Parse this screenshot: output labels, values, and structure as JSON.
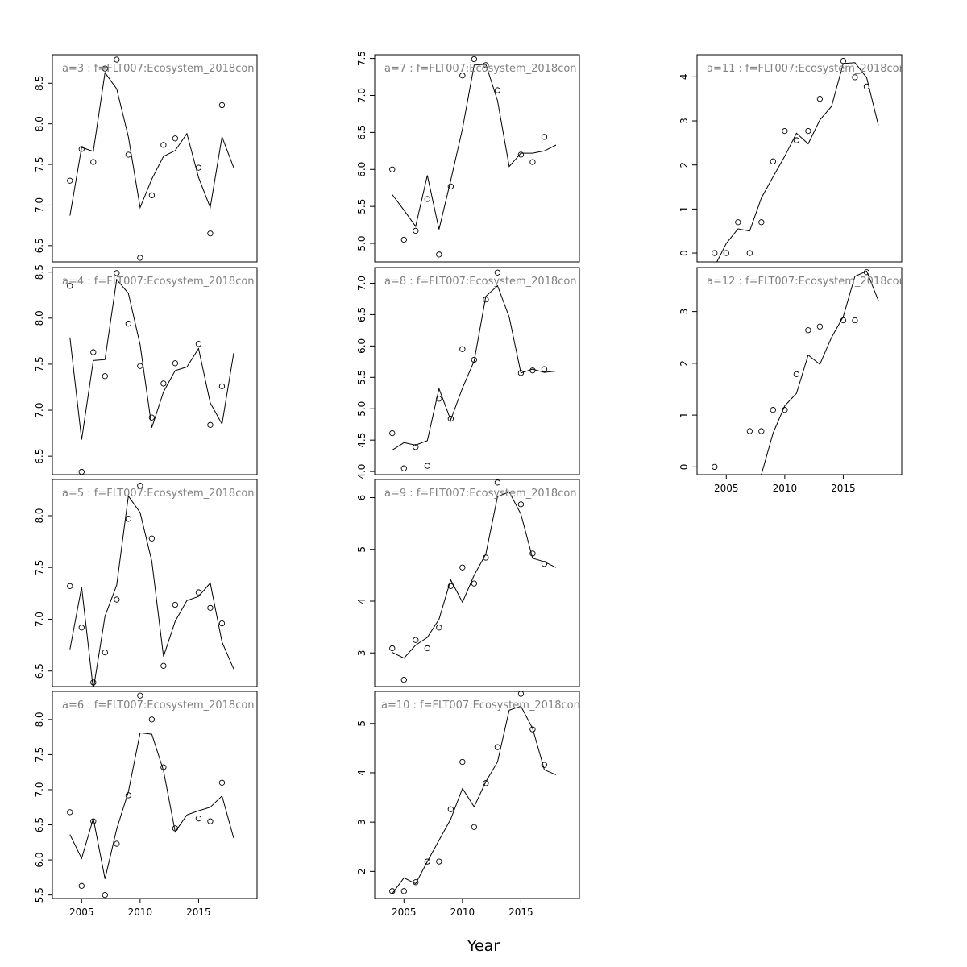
{
  "xlabel": "Year",
  "chart_data": [
    {
      "type": "scatter",
      "title": "a=3 : f=FLT007:Ecosystem_2018con",
      "ylim": [
        6.3,
        8.85
      ],
      "yticks": [
        6.5,
        7.0,
        7.5,
        8.0,
        8.5
      ],
      "xlim": [
        2002.5,
        2020
      ],
      "xticks": [
        2005,
        2010,
        2015
      ],
      "points": {
        "x": [
          2004,
          2005,
          2006,
          2007,
          2008,
          2009,
          2010,
          2011,
          2012,
          2013,
          2015,
          2016,
          2017
        ],
        "y": [
          7.3,
          7.69,
          7.53,
          8.68,
          8.79,
          7.62,
          6.35,
          7.12,
          7.74,
          7.82,
          7.46,
          6.65,
          8.23
        ]
      },
      "fit": {
        "x": [
          2004,
          2005,
          2006,
          2007,
          2008,
          2009,
          2010,
          2011,
          2012,
          2013,
          2014,
          2015,
          2016,
          2017,
          2018
        ],
        "y": [
          6.87,
          7.71,
          7.66,
          8.63,
          8.43,
          7.84,
          6.97,
          7.32,
          7.6,
          7.67,
          7.88,
          7.34,
          6.97,
          7.84,
          7.46
        ]
      }
    },
    {
      "type": "scatter",
      "title": "a=4 : f=FLT007:Ecosystem_2018con",
      "ylim": [
        6.3,
        8.55
      ],
      "yticks": [
        6.5,
        7.0,
        7.5,
        8.0,
        8.5
      ],
      "xlim": [
        2002.5,
        2020
      ],
      "xticks": [
        2005,
        2010,
        2015
      ],
      "points": {
        "x": [
          2004,
          2005,
          2006,
          2007,
          2008,
          2009,
          2010,
          2011,
          2012,
          2013,
          2015,
          2016,
          2017
        ],
        "y": [
          8.35,
          6.33,
          7.63,
          7.37,
          8.49,
          7.94,
          7.48,
          6.92,
          7.29,
          7.51,
          7.72,
          6.84,
          7.26
        ]
      },
      "fit": {
        "x": [
          2004,
          2005,
          2006,
          2007,
          2008,
          2009,
          2010,
          2011,
          2012,
          2013,
          2014,
          2015,
          2016,
          2017,
          2018
        ],
        "y": [
          7.79,
          6.68,
          7.54,
          7.55,
          8.42,
          8.27,
          7.71,
          6.81,
          7.2,
          7.43,
          7.47,
          7.67,
          7.08,
          6.85,
          7.62
        ]
      }
    },
    {
      "type": "scatter",
      "title": "a=5 : f=FLT007:Ecosystem_2018con",
      "ylim": [
        6.35,
        8.35
      ],
      "yticks": [
        6.5,
        7.0,
        7.5,
        8.0
      ],
      "xlim": [
        2002.5,
        2020
      ],
      "xticks": [
        2005,
        2010,
        2015
      ],
      "points": {
        "x": [
          2004,
          2005,
          2006,
          2007,
          2008,
          2009,
          2010,
          2011,
          2012,
          2013,
          2015,
          2016,
          2017
        ],
        "y": [
          7.32,
          6.92,
          6.39,
          6.68,
          7.19,
          7.97,
          8.29,
          7.78,
          6.55,
          7.14,
          7.26,
          7.11,
          6.96
        ]
      },
      "fit": {
        "x": [
          2004,
          2005,
          2006,
          2007,
          2008,
          2009,
          2010,
          2011,
          2012,
          2013,
          2014,
          2015,
          2016,
          2017,
          2018
        ],
        "y": [
          6.71,
          7.31,
          6.32,
          7.03,
          7.33,
          8.19,
          8.03,
          7.56,
          6.64,
          6.98,
          7.18,
          7.22,
          7.35,
          6.78,
          6.52
        ]
      }
    },
    {
      "type": "scatter",
      "title": "a=6 : f=FLT007:Ecosystem_2018con",
      "ylim": [
        5.45,
        8.4
      ],
      "yticks": [
        5.5,
        6.0,
        6.5,
        7.0,
        7.5,
        8.0
      ],
      "xlim": [
        2002.5,
        2020
      ],
      "xticks": [
        2005,
        2010,
        2015
      ],
      "points": {
        "x": [
          2004,
          2005,
          2006,
          2007,
          2008,
          2009,
          2010,
          2011,
          2012,
          2013,
          2015,
          2016,
          2017
        ],
        "y": [
          6.68,
          5.63,
          6.55,
          5.5,
          6.23,
          6.92,
          8.34,
          8.0,
          7.32,
          6.45,
          6.59,
          6.55,
          7.1
        ]
      },
      "fit": {
        "x": [
          2004,
          2005,
          2006,
          2007,
          2008,
          2009,
          2010,
          2011,
          2012,
          2013,
          2014,
          2015,
          2016,
          2017,
          2018
        ],
        "y": [
          6.36,
          6.02,
          6.59,
          5.73,
          6.44,
          6.97,
          7.81,
          7.79,
          7.27,
          6.4,
          6.64,
          6.7,
          6.75,
          6.91,
          6.31
        ]
      }
    },
    {
      "type": "scatter",
      "title": "a=7 : f=FLT007:Ecosystem_2018con",
      "ylim": [
        4.75,
        7.55
      ],
      "yticks": [
        5.0,
        5.5,
        6.0,
        6.5,
        7.0,
        7.5
      ],
      "xlim": [
        2002.5,
        2020
      ],
      "xticks": [
        2005,
        2010,
        2015
      ],
      "points": {
        "x": [
          2004,
          2005,
          2006,
          2007,
          2008,
          2009,
          2010,
          2011,
          2012,
          2013,
          2015,
          2016,
          2017
        ],
        "y": [
          6.0,
          5.05,
          5.17,
          5.6,
          4.85,
          5.77,
          7.27,
          7.49,
          7.41,
          7.07,
          6.2,
          6.1,
          6.44
        ]
      },
      "fit": {
        "x": [
          2004,
          2005,
          2006,
          2007,
          2008,
          2009,
          2010,
          2011,
          2012,
          2013,
          2014,
          2015,
          2016,
          2017,
          2018
        ],
        "y": [
          5.66,
          5.45,
          5.23,
          5.92,
          5.19,
          5.85,
          6.55,
          7.41,
          7.42,
          6.93,
          6.04,
          6.22,
          6.22,
          6.25,
          6.33
        ]
      }
    },
    {
      "type": "scatter",
      "title": "a=8 : f=FLT007:Ecosystem_2018con",
      "ylim": [
        3.95,
        7.25
      ],
      "yticks": [
        4.0,
        4.5,
        5.0,
        5.5,
        6.0,
        6.5,
        7.0
      ],
      "xlim": [
        2002.5,
        2020
      ],
      "xticks": [
        2005,
        2010,
        2015
      ],
      "points": {
        "x": [
          2004,
          2005,
          2006,
          2007,
          2008,
          2009,
          2010,
          2011,
          2012,
          2013,
          2015,
          2016,
          2017
        ],
        "y": [
          4.61,
          4.05,
          4.39,
          4.09,
          5.16,
          4.84,
          5.95,
          5.78,
          6.74,
          7.17,
          5.57,
          5.61,
          5.63
        ]
      },
      "fit": {
        "x": [
          2004,
          2005,
          2006,
          2007,
          2008,
          2009,
          2010,
          2011,
          2012,
          2013,
          2014,
          2015,
          2016,
          2017,
          2018
        ],
        "y": [
          4.34,
          4.46,
          4.42,
          4.49,
          5.32,
          4.82,
          5.33,
          5.76,
          6.79,
          6.96,
          6.46,
          5.57,
          5.63,
          5.58,
          5.6
        ]
      }
    },
    {
      "type": "scatter",
      "title": "a=9 : f=FLT007:Ecosystem_2018con",
      "ylim": [
        2.35,
        6.35
      ],
      "yticks": [
        3,
        4,
        5,
        6
      ],
      "xlim": [
        2002.5,
        2020
      ],
      "xticks": [
        2005,
        2010,
        2015
      ],
      "points": {
        "x": [
          2004,
          2005,
          2006,
          2007,
          2008,
          2009,
          2010,
          2011,
          2012,
          2013,
          2015,
          2016,
          2017
        ],
        "y": [
          3.09,
          2.48,
          3.25,
          3.09,
          3.49,
          4.29,
          4.65,
          4.34,
          4.84,
          6.29,
          5.87,
          4.92,
          4.72
        ]
      },
      "fit": {
        "x": [
          2004,
          2005,
          2006,
          2007,
          2008,
          2009,
          2010,
          2011,
          2012,
          2013,
          2014,
          2015,
          2016,
          2017,
          2018
        ],
        "y": [
          3.01,
          2.9,
          3.15,
          3.3,
          3.65,
          4.41,
          3.98,
          4.5,
          4.91,
          6.02,
          6.11,
          5.68,
          4.83,
          4.76,
          4.65
        ]
      }
    },
    {
      "type": "scatter",
      "title": "a=10 : f=FLT007:Ecosystem_2018con",
      "ylim": [
        1.45,
        5.65
      ],
      "yticks": [
        2,
        3,
        4,
        5
      ],
      "xlim": [
        2002.5,
        2020
      ],
      "xticks": [
        2005,
        2010,
        2015
      ],
      "points": {
        "x": [
          2004,
          2005,
          2006,
          2007,
          2008,
          2009,
          2010,
          2011,
          2012,
          2013,
          2015,
          2016,
          2017
        ],
        "y": [
          1.6,
          1.6,
          1.78,
          2.2,
          2.2,
          3.26,
          4.22,
          2.9,
          3.79,
          4.52,
          5.6,
          4.88,
          4.16
        ]
      },
      "fit": {
        "x": [
          2004,
          2005,
          2006,
          2007,
          2008,
          2009,
          2010,
          2011,
          2012,
          2013,
          2014,
          2015,
          2016,
          2017,
          2018
        ],
        "y": [
          1.55,
          1.87,
          1.75,
          2.2,
          2.63,
          3.06,
          3.68,
          3.31,
          3.82,
          4.22,
          5.27,
          5.35,
          4.9,
          4.06,
          3.96
        ]
      }
    },
    {
      "type": "scatter",
      "title": "a=11 : f=FLT007:Ecosystem_2018con",
      "ylim": [
        -0.2,
        4.5
      ],
      "yticks": [
        0,
        1,
        2,
        3,
        4
      ],
      "xlim": [
        2002.5,
        2020
      ],
      "xticks": [
        2005,
        2010,
        2015
      ],
      "points": {
        "x": [
          2004,
          2005,
          2006,
          2007,
          2008,
          2009,
          2010,
          2011,
          2012,
          2013,
          2015,
          2016,
          2017
        ],
        "y": [
          0.0,
          0.0,
          0.7,
          0.0,
          0.7,
          2.08,
          2.77,
          2.56,
          2.77,
          3.5,
          4.36,
          3.99,
          3.78
        ]
      },
      "fit": {
        "x": [
          2004,
          2005,
          2006,
          2007,
          2008,
          2009,
          2010,
          2011,
          2012,
          2013,
          2014,
          2015,
          2016,
          2017,
          2018
        ],
        "y": [
          -0.3,
          0.22,
          0.55,
          0.5,
          1.25,
          1.73,
          2.2,
          2.72,
          2.48,
          3.02,
          3.33,
          4.3,
          4.32,
          3.98,
          2.9
        ]
      }
    },
    {
      "type": "scatter",
      "title": "a=12 : f=FLT007:Ecosystem_2018con",
      "ylim": [
        -0.15,
        3.85
      ],
      "yticks": [
        0,
        1,
        2,
        3
      ],
      "xlim": [
        2002.5,
        2020
      ],
      "xticks": [
        2005,
        2010,
        2015
      ],
      "points": {
        "x": [
          2004,
          2007,
          2008,
          2009,
          2010,
          2011,
          2012,
          2013,
          2015,
          2016,
          2017
        ],
        "y": [
          0.0,
          0.69,
          0.69,
          1.1,
          1.1,
          1.79,
          2.64,
          2.71,
          2.83,
          2.83,
          3.76
        ]
      },
      "fit": {
        "x": [
          2008,
          2009,
          2010,
          2011,
          2012,
          2013,
          2014,
          2015,
          2016,
          2017,
          2018
        ],
        "y": [
          -0.15,
          0.65,
          1.18,
          1.42,
          2.16,
          1.98,
          2.5,
          2.9,
          3.68,
          3.78,
          3.21
        ]
      }
    }
  ]
}
